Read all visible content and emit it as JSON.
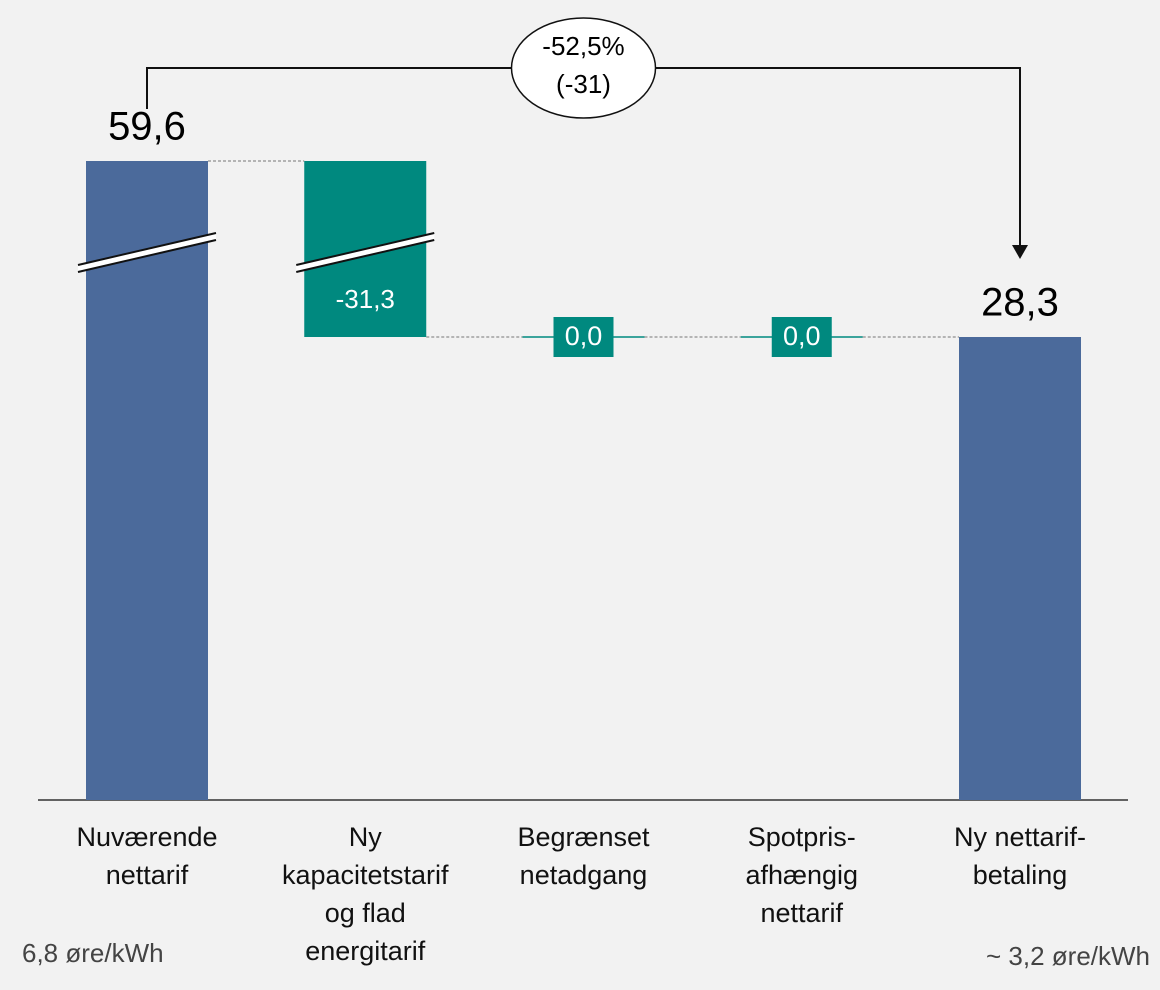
{
  "chart_data": {
    "type": "waterfall",
    "categories": [
      "Nuværende nettarif",
      "Ny kapacitetstarif og flad energitarif",
      "Begrænset netadgang",
      "Spotpris-afhængig nettarif",
      "Ny nettarif-betaling"
    ],
    "values": [
      59.6,
      -31.3,
      0.0,
      0.0,
      28.3
    ],
    "value_labels": [
      "59,6",
      "-31,3",
      "0,0",
      "0,0",
      "28,3"
    ],
    "measures": [
      "absolute",
      "relative",
      "relative",
      "relative",
      "total"
    ],
    "total_color": "#4b6a9b",
    "delta_color": "#00897f",
    "axis_break": true,
    "annotation": [
      "-52,5%",
      "(-31)"
    ],
    "notes": [
      "6,8 øre/kWh",
      "~ 3,2 øre/kWh"
    ]
  }
}
